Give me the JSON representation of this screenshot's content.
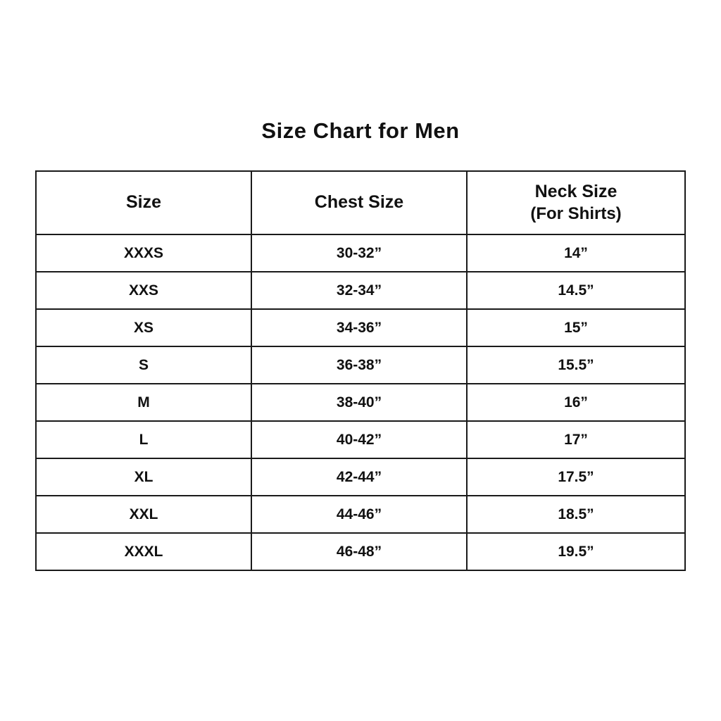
{
  "title": "Size Chart for Men",
  "table": {
    "columns": [
      {
        "label": "Size",
        "sublabel": ""
      },
      {
        "label": "Chest Size",
        "sublabel": ""
      },
      {
        "label": "Neck Size",
        "sublabel": "(For Shirts)"
      }
    ],
    "rows": [
      {
        "size": "XXXS",
        "chest": "30-32”",
        "neck": "14”"
      },
      {
        "size": "XXS",
        "chest": "32-34”",
        "neck": "14.5”"
      },
      {
        "size": "XS",
        "chest": "34-36”",
        "neck": "15”"
      },
      {
        "size": "S",
        "chest": "36-38”",
        "neck": "15.5”"
      },
      {
        "size": "M",
        "chest": "38-40”",
        "neck": "16”"
      },
      {
        "size": "L",
        "chest": "40-42”",
        "neck": "17”"
      },
      {
        "size": "XL",
        "chest": "42-44”",
        "neck": "17.5”"
      },
      {
        "size": "XXL",
        "chest": "44-46”",
        "neck": "18.5”"
      },
      {
        "size": "XXXL",
        "chest": "46-48”",
        "neck": "19.5”"
      }
    ]
  }
}
